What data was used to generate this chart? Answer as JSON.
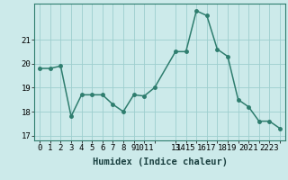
{
  "x": [
    0,
    1,
    2,
    3,
    4,
    5,
    6,
    7,
    8,
    9,
    10,
    11,
    13,
    14,
    15,
    16,
    17,
    18,
    19,
    20,
    21,
    22,
    23
  ],
  "y": [
    19.8,
    19.8,
    19.9,
    17.8,
    18.7,
    18.7,
    18.7,
    18.3,
    18.0,
    18.7,
    18.65,
    19.0,
    20.5,
    20.5,
    22.2,
    22.0,
    20.6,
    20.3,
    18.5,
    18.2,
    17.6,
    17.6,
    17.3
  ],
  "line_color": "#2e7d6e",
  "marker_color": "#2e7d6e",
  "bg_color": "#cceaea",
  "grid_color": "#9dcece",
  "xlabel": "Humidex (Indice chaleur)",
  "xlim": [
    -0.5,
    23.5
  ],
  "ylim": [
    16.8,
    22.5
  ],
  "xtick_labels": [
    "0",
    "1",
    "2",
    "3",
    "4",
    "5",
    "6",
    "7",
    "8",
    "9",
    "1011",
    "",
    "13",
    "1415",
    "",
    "1617",
    "",
    "1819",
    "",
    "2021",
    "",
    "2223",
    ""
  ],
  "xtick_positions": [
    0,
    1,
    2,
    3,
    4,
    5,
    6,
    7,
    8,
    9,
    10,
    11,
    13,
    14,
    15,
    16,
    17,
    18,
    19,
    20,
    21,
    22,
    23
  ],
  "yticks": [
    17,
    18,
    19,
    20,
    21
  ],
  "xlabel_fontsize": 7.5,
  "tick_fontsize": 6.5,
  "line_width": 1.1,
  "marker_size": 2.5
}
